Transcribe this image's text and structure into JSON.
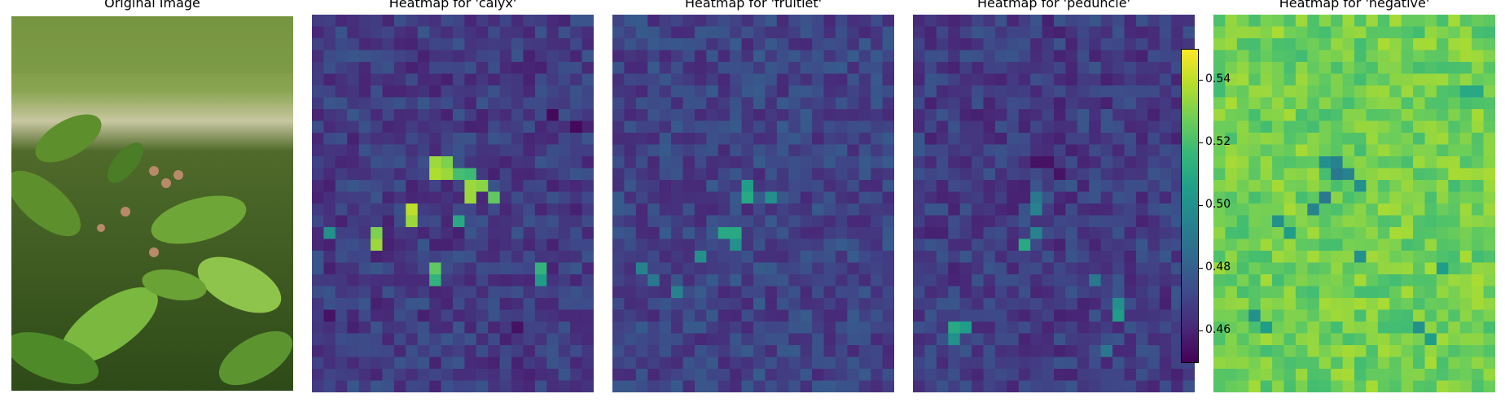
{
  "titles": {
    "original": "Original Image",
    "calyx": "Heatmap for 'calyx'",
    "fruitlet": "Heatmap for 'fruitlet'",
    "peduncle": "Heatmap for 'peduncle'",
    "negative": "Heatmap for 'negative'"
  },
  "chart_data": {
    "type": "heatmap",
    "colormap": "viridis",
    "grid": {
      "rows": 32,
      "cols": 24
    },
    "color_range": [
      0.45,
      0.55
    ],
    "colorbar": {
      "ticks": [
        0.46,
        0.48,
        0.5,
        0.52,
        0.54
      ],
      "tick_labels": [
        "0.46",
        "0.48",
        "0.50",
        "0.52",
        "0.54"
      ]
    },
    "panels": [
      {
        "name": "calyx",
        "base": 0.468,
        "hotspots": [
          {
            "r": 12,
            "c": 10,
            "v": 0.535
          },
          {
            "r": 12,
            "c": 11,
            "v": 0.53
          },
          {
            "r": 13,
            "c": 10,
            "v": 0.538
          },
          {
            "r": 13,
            "c": 11,
            "v": 0.535
          },
          {
            "r": 13,
            "c": 12,
            "v": 0.52
          },
          {
            "r": 13,
            "c": 13,
            "v": 0.518
          },
          {
            "r": 14,
            "c": 13,
            "v": 0.535
          },
          {
            "r": 14,
            "c": 14,
            "v": 0.532
          },
          {
            "r": 15,
            "c": 13,
            "v": 0.535
          },
          {
            "r": 15,
            "c": 15,
            "v": 0.525
          },
          {
            "r": 16,
            "c": 8,
            "v": 0.54
          },
          {
            "r": 17,
            "c": 8,
            "v": 0.535
          },
          {
            "r": 17,
            "c": 12,
            "v": 0.51
          },
          {
            "r": 18,
            "c": 5,
            "v": 0.53
          },
          {
            "r": 19,
            "c": 5,
            "v": 0.535
          },
          {
            "r": 18,
            "c": 1,
            "v": 0.5
          },
          {
            "r": 21,
            "c": 10,
            "v": 0.525
          },
          {
            "r": 22,
            "c": 10,
            "v": 0.515
          },
          {
            "r": 21,
            "c": 19,
            "v": 0.515
          },
          {
            "r": 22,
            "c": 19,
            "v": 0.505
          },
          {
            "r": 25,
            "c": 1,
            "v": 0.455
          },
          {
            "r": 26,
            "c": 17,
            "v": 0.455
          },
          {
            "r": 8,
            "c": 20,
            "v": 0.452
          },
          {
            "r": 9,
            "c": 22,
            "v": 0.452
          }
        ]
      },
      {
        "name": "fruitlet",
        "base": 0.47,
        "hotspots": [
          {
            "r": 14,
            "c": 11,
            "v": 0.505
          },
          {
            "r": 15,
            "c": 11,
            "v": 0.51
          },
          {
            "r": 15,
            "c": 13,
            "v": 0.5
          },
          {
            "r": 18,
            "c": 9,
            "v": 0.51
          },
          {
            "r": 18,
            "c": 10,
            "v": 0.51
          },
          {
            "r": 19,
            "c": 10,
            "v": 0.5
          },
          {
            "r": 20,
            "c": 7,
            "v": 0.5
          },
          {
            "r": 21,
            "c": 2,
            "v": 0.495
          },
          {
            "r": 23,
            "c": 5,
            "v": 0.495
          },
          {
            "r": 22,
            "c": 3,
            "v": 0.49
          }
        ]
      },
      {
        "name": "peduncle",
        "base": 0.468,
        "hotspots": [
          {
            "r": 12,
            "c": 10,
            "v": 0.455
          },
          {
            "r": 12,
            "c": 11,
            "v": 0.455
          },
          {
            "r": 13,
            "c": 12,
            "v": 0.455
          },
          {
            "r": 14,
            "c": 8,
            "v": 0.46
          },
          {
            "r": 15,
            "c": 10,
            "v": 0.49
          },
          {
            "r": 16,
            "c": 10,
            "v": 0.495
          },
          {
            "r": 19,
            "c": 9,
            "v": 0.51
          },
          {
            "r": 18,
            "c": 10,
            "v": 0.495
          },
          {
            "r": 22,
            "c": 15,
            "v": 0.49
          },
          {
            "r": 24,
            "c": 17,
            "v": 0.5
          },
          {
            "r": 25,
            "c": 17,
            "v": 0.505
          },
          {
            "r": 26,
            "c": 3,
            "v": 0.51
          },
          {
            "r": 26,
            "c": 4,
            "v": 0.505
          },
          {
            "r": 27,
            "c": 3,
            "v": 0.5
          },
          {
            "r": 28,
            "c": 16,
            "v": 0.49
          }
        ]
      },
      {
        "name": "negative",
        "base": 0.528,
        "hotspots": [
          {
            "r": 12,
            "c": 9,
            "v": 0.5
          },
          {
            "r": 12,
            "c": 10,
            "v": 0.495
          },
          {
            "r": 13,
            "c": 10,
            "v": 0.49
          },
          {
            "r": 13,
            "c": 11,
            "v": 0.495
          },
          {
            "r": 14,
            "c": 12,
            "v": 0.5
          },
          {
            "r": 15,
            "c": 9,
            "v": 0.49
          },
          {
            "r": 16,
            "c": 8,
            "v": 0.495
          },
          {
            "r": 17,
            "c": 5,
            "v": 0.5
          },
          {
            "r": 18,
            "c": 6,
            "v": 0.505
          },
          {
            "r": 20,
            "c": 12,
            "v": 0.5
          },
          {
            "r": 21,
            "c": 19,
            "v": 0.505
          },
          {
            "r": 25,
            "c": 3,
            "v": 0.5
          },
          {
            "r": 26,
            "c": 4,
            "v": 0.505
          },
          {
            "r": 26,
            "c": 17,
            "v": 0.5
          },
          {
            "r": 27,
            "c": 18,
            "v": 0.505
          },
          {
            "r": 6,
            "c": 21,
            "v": 0.51
          },
          {
            "r": 6,
            "c": 22,
            "v": 0.51
          }
        ]
      }
    ]
  }
}
